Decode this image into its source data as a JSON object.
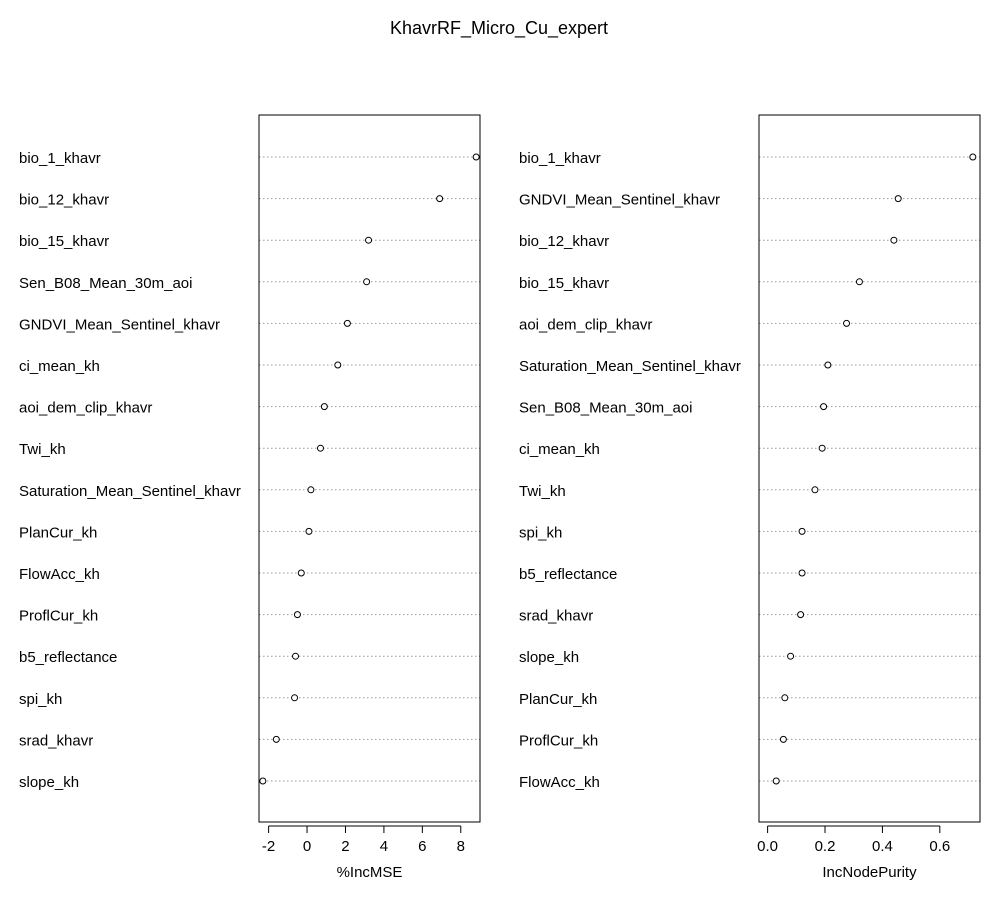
{
  "chart_data": {
    "type": "scatter",
    "title": "KhavrRF_Micro_Cu_expert",
    "colors": {
      "point": "#000000",
      "grid": "#9a9a9a",
      "axis": "#000000"
    },
    "panels": [
      {
        "xlabel": "%IncMSE",
        "xlim": [
          -2.5,
          9.0
        ],
        "ticks": [
          -2,
          0,
          2,
          4,
          6,
          8
        ],
        "tick_labels": [
          "-2",
          "0",
          "2",
          "4",
          "6",
          "8"
        ],
        "grid": "dotted-horizontal",
        "variables": [
          "bio_1_khavr",
          "bio_12_khavr",
          "bio_15_khavr",
          "Sen_B08_Mean_30m_aoi",
          "GNDVI_Mean_Sentinel_khavr",
          "ci_mean_kh",
          "aoi_dem_clip_khavr",
          "Twi_kh",
          "Saturation_Mean_Sentinel_khavr",
          "PlanCur_kh",
          "FlowAcc_kh",
          "ProflCur_kh",
          "b5_reflectance",
          "spi_kh",
          "srad_khavr",
          "slope_kh"
        ],
        "values": [
          8.8,
          6.9,
          3.2,
          3.1,
          2.1,
          1.6,
          0.9,
          0.7,
          0.2,
          0.1,
          -0.3,
          -0.5,
          -0.6,
          -0.65,
          -1.6,
          -2.3
        ]
      },
      {
        "xlabel": "IncNodePurity",
        "xlim": [
          -0.03,
          0.74
        ],
        "ticks": [
          0.0,
          0.2,
          0.4,
          0.6
        ],
        "tick_labels": [
          "0.0",
          "0.2",
          "0.4",
          "0.6"
        ],
        "grid": "dotted-horizontal",
        "variables": [
          "bio_1_khavr",
          "GNDVI_Mean_Sentinel_khavr",
          "bio_12_khavr",
          "bio_15_khavr",
          "aoi_dem_clip_khavr",
          "Saturation_Mean_Sentinel_khavr",
          "Sen_B08_Mean_30m_aoi",
          "ci_mean_kh",
          "Twi_kh",
          "spi_kh",
          "b5_reflectance",
          "srad_khavr",
          "slope_kh",
          "PlanCur_kh",
          "ProflCur_kh",
          "FlowAcc_kh"
        ],
        "values": [
          0.715,
          0.455,
          0.44,
          0.32,
          0.275,
          0.21,
          0.195,
          0.19,
          0.165,
          0.12,
          0.12,
          0.115,
          0.08,
          0.06,
          0.055,
          0.03
        ]
      }
    ]
  }
}
